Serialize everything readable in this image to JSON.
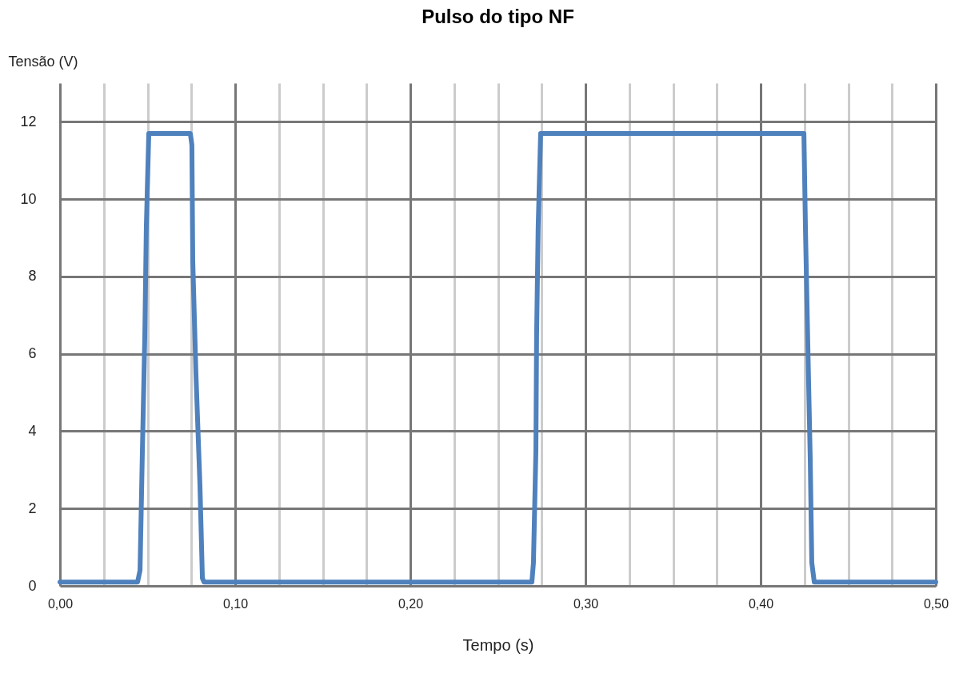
{
  "chart_data": {
    "type": "line",
    "title": "Pulso do tipo NF",
    "xlabel": "Tempo (s)",
    "ylabel": "Tensão (V)",
    "x": [
      0,
      0.0443,
      0.0457,
      0.047,
      0.0484,
      0.0493,
      0.0507,
      0.0744,
      0.0753,
      0.0758,
      0.0776,
      0.0799,
      0.0813,
      0.0822,
      0.2694,
      0.2703,
      0.2717,
      0.2721,
      0.273,
      0.2744,
      0.4247,
      0.4256,
      0.4269,
      0.4283,
      0.4292,
      0.4306,
      0.5
    ],
    "series": [
      {
        "color": "#4f81bd",
        "values": [
          0.1,
          0.1,
          0.4,
          3.4,
          6.4,
          9.3,
          11.7,
          11.7,
          11.4,
          8.4,
          5.5,
          2.6,
          0.2,
          0.1,
          0.1,
          0.6,
          3.5,
          6.5,
          9.3,
          11.7,
          11.7,
          9.2,
          6.3,
          3.3,
          0.6,
          0.1,
          0.1
        ]
      }
    ],
    "xlim": [
      0,
      0.5
    ],
    "ylim": [
      0,
      13
    ],
    "xticks": [
      {
        "value": 0,
        "label": "0,00"
      },
      {
        "value": 0.025,
        "label": null
      },
      {
        "value": 0.05,
        "label": null
      },
      {
        "value": 0.075,
        "label": null
      },
      {
        "value": 0.1,
        "label": "0,10"
      },
      {
        "value": 0.125,
        "label": null
      },
      {
        "value": 0.15,
        "label": null
      },
      {
        "value": 0.175,
        "label": null
      },
      {
        "value": 0.2,
        "label": "0,20"
      },
      {
        "value": 0.225,
        "label": null
      },
      {
        "value": 0.25,
        "label": null
      },
      {
        "value": 0.275,
        "label": null
      },
      {
        "value": 0.3,
        "label": "0,30"
      },
      {
        "value": 0.325,
        "label": null
      },
      {
        "value": 0.35,
        "label": null
      },
      {
        "value": 0.375,
        "label": null
      },
      {
        "value": 0.4,
        "label": "0,40"
      },
      {
        "value": 0.425,
        "label": null
      },
      {
        "value": 0.45,
        "label": null
      },
      {
        "value": 0.475,
        "label": null
      },
      {
        "value": 0.5,
        "label": "0,50"
      }
    ],
    "yticks": [
      0,
      2,
      4,
      6,
      8,
      10,
      12
    ],
    "grid": true,
    "marker": "none",
    "line_style": "solid"
  }
}
